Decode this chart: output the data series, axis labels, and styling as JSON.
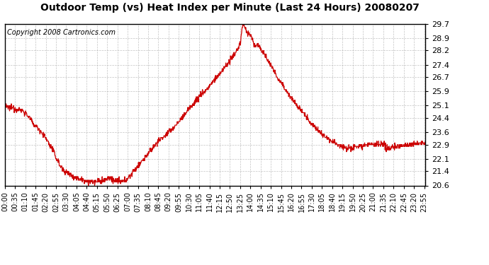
{
  "title": "Outdoor Temp (vs) Heat Index per Minute (Last 24 Hours) 20080207",
  "copyright": "Copyright 2008 Cartronics.com",
  "line_color": "#cc0000",
  "bg_color": "#ffffff",
  "plot_bg_color": "#ffffff",
  "grid_color": "#aaaaaa",
  "yticks": [
    20.6,
    21.4,
    22.1,
    22.9,
    23.6,
    24.4,
    25.1,
    25.9,
    26.7,
    27.4,
    28.2,
    28.9,
    29.7
  ],
  "ylim": [
    20.6,
    29.7
  ],
  "xtick_labels": [
    "00:00",
    "00:35",
    "01:10",
    "01:45",
    "02:20",
    "02:55",
    "03:30",
    "04:05",
    "04:40",
    "05:15",
    "05:50",
    "06:25",
    "07:00",
    "07:35",
    "08:10",
    "08:45",
    "09:20",
    "09:55",
    "10:30",
    "11:05",
    "11:40",
    "12:15",
    "12:50",
    "13:25",
    "14:00",
    "14:35",
    "15:10",
    "15:45",
    "16:20",
    "16:55",
    "17:30",
    "18:05",
    "18:40",
    "19:15",
    "19:50",
    "20:25",
    "21:00",
    "21:35",
    "22:10",
    "22:45",
    "23:20",
    "23:55"
  ]
}
